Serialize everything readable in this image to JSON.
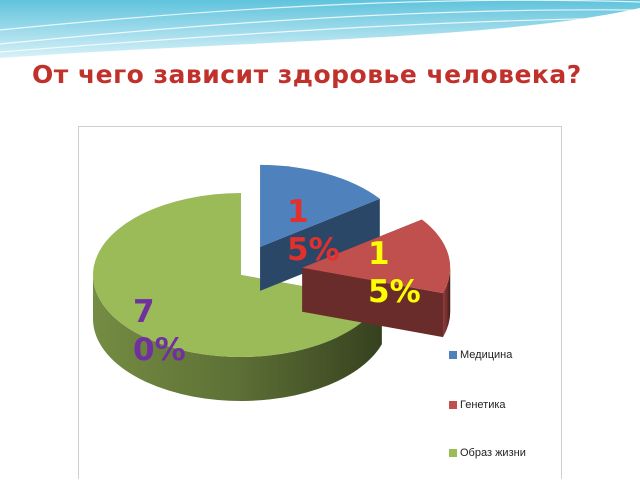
{
  "slide": {
    "title": "От чего зависит здоровье человека?"
  },
  "colors": {
    "title": "#c0312c",
    "banner": "#5fc3dc"
  },
  "chart_data": {
    "type": "pie",
    "title": "",
    "legend_position": "bottom-right",
    "categories": [
      "Медицина",
      "Генетика",
      "Образ жизни"
    ],
    "values": [
      15,
      15,
      70
    ],
    "data_labels": [
      "15%",
      "15%",
      "70%"
    ],
    "colors": [
      "#4f81bd",
      "#c0504d",
      "#9bbb59"
    ],
    "label_colors": [
      "#e3302c",
      "#ffff00",
      "#7030a0"
    ],
    "exploded": [
      true,
      true,
      false
    ]
  }
}
